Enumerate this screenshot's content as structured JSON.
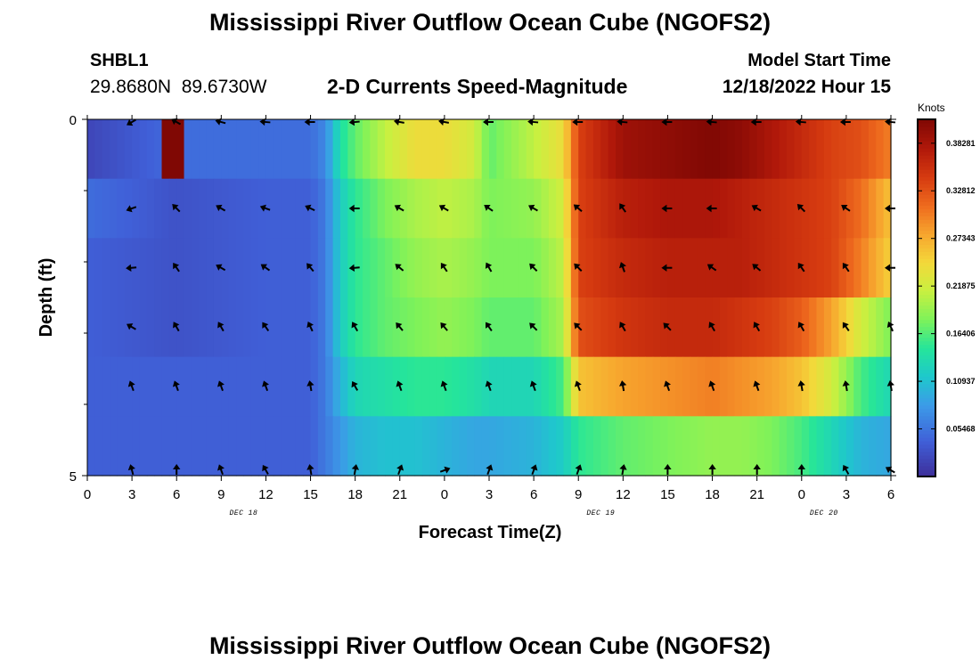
{
  "header": {
    "title": "Mississippi River Outflow Ocean Cube (NGOFS2)",
    "station_id": "SHBL1",
    "station_coords": "29.8680N  89.6730W",
    "plot_subtitle": "2-D Currents Speed-Magnitude",
    "model_start_label": "Model Start Time",
    "model_start_value": "12/18/2022 Hour 15"
  },
  "footer": {
    "next_title": "Mississippi River Outflow Ocean Cube (NGOFS2)"
  },
  "chart_data": {
    "type": "heatmap",
    "title": "2-D Currents Speed-Magnitude",
    "xlabel": "Forecast Time(Z)",
    "ylabel": "Depth (ft)",
    "colorbar_label": "Knots",
    "colorbar_ticks": [
      "0.05468",
      "0.10937",
      "0.16406",
      "0.21875",
      "0.27343",
      "0.32812",
      "0.38281"
    ],
    "colorbar_range": [
      0.0,
      0.4102
    ],
    "x_tick_labels": [
      "0",
      "3",
      "6",
      "9",
      "12",
      "15",
      "18",
      "21",
      "0",
      "3",
      "6",
      "9",
      "12",
      "15",
      "18",
      "21",
      "0",
      "3",
      "6"
    ],
    "x_range_hours": [
      0,
      54
    ],
    "date_labels": [
      {
        "label": "DEC 18",
        "hour": 10.5
      },
      {
        "label": "DEC 19",
        "hour": 34.5
      },
      {
        "label": "DEC 20",
        "hour": 49.5
      }
    ],
    "y_tick_labels": [
      "0",
      "5"
    ],
    "y_range_ft": [
      0,
      5
    ],
    "depth_layers_ft": [
      0.25,
      1.0,
      2.0,
      3.0,
      4.0,
      4.75
    ],
    "speed_keypoints": {
      "hours": [
        0,
        6,
        12,
        15,
        16,
        17,
        18,
        20,
        22,
        24,
        26,
        27,
        30,
        32,
        33,
        36,
        39,
        42,
        44,
        46,
        48,
        50,
        52,
        54
      ],
      "layers": [
        [
          0.02,
          0.05,
          0.05,
          0.05,
          0.07,
          0.14,
          0.17,
          0.21,
          0.24,
          0.24,
          0.22,
          0.17,
          0.21,
          0.24,
          0.34,
          0.39,
          0.4,
          0.41,
          0.4,
          0.38,
          0.36,
          0.34,
          0.33,
          0.3
        ],
        [
          0.05,
          0.03,
          0.04,
          0.04,
          0.06,
          0.12,
          0.15,
          0.18,
          0.2,
          0.21,
          0.2,
          0.18,
          0.19,
          0.22,
          0.34,
          0.37,
          0.38,
          0.38,
          0.37,
          0.36,
          0.35,
          0.34,
          0.31,
          0.26
        ],
        [
          0.04,
          0.03,
          0.04,
          0.04,
          0.06,
          0.12,
          0.15,
          0.17,
          0.19,
          0.2,
          0.19,
          0.18,
          0.18,
          0.21,
          0.34,
          0.36,
          0.37,
          0.37,
          0.37,
          0.36,
          0.35,
          0.34,
          0.3,
          0.25
        ],
        [
          0.04,
          0.03,
          0.04,
          0.04,
          0.06,
          0.12,
          0.15,
          0.17,
          0.18,
          0.19,
          0.18,
          0.17,
          0.17,
          0.2,
          0.33,
          0.35,
          0.36,
          0.36,
          0.35,
          0.34,
          0.32,
          0.28,
          0.22,
          0.18
        ],
        [
          0.04,
          0.04,
          0.04,
          0.04,
          0.06,
          0.1,
          0.13,
          0.14,
          0.15,
          0.15,
          0.14,
          0.13,
          0.13,
          0.16,
          0.26,
          0.28,
          0.29,
          0.3,
          0.29,
          0.28,
          0.26,
          0.22,
          0.16,
          0.13
        ],
        [
          0.04,
          0.04,
          0.04,
          0.04,
          0.06,
          0.08,
          0.1,
          0.11,
          0.11,
          0.1,
          0.09,
          0.09,
          0.1,
          0.12,
          0.15,
          0.17,
          0.18,
          0.19,
          0.19,
          0.18,
          0.16,
          0.13,
          0.1,
          0.09
        ]
      ],
      "hotspot": {
        "hour_from": 5,
        "hour_to": 6.5,
        "layer": 0,
        "value": 0.41
      }
    },
    "arrow_hours": [
      3,
      6,
      9,
      12,
      15,
      18,
      21,
      24,
      27,
      30,
      33,
      36,
      39,
      42,
      45,
      48,
      51,
      54
    ],
    "arrow_directions_deg": [
      [
        210,
        150,
        165,
        175,
        180,
        185,
        170,
        170,
        180,
        175,
        180,
        175,
        180,
        175,
        180,
        175,
        180,
        175
      ],
      [
        200,
        135,
        150,
        160,
        155,
        180,
        150,
        150,
        145,
        150,
        140,
        125,
        180,
        180,
        150,
        135,
        145,
        180
      ],
      [
        185,
        125,
        150,
        145,
        130,
        185,
        140,
        125,
        120,
        135,
        135,
        110,
        180,
        145,
        140,
        125,
        125,
        180
      ],
      [
        150,
        120,
        120,
        125,
        115,
        120,
        130,
        130,
        125,
        135,
        135,
        120,
        135,
        120,
        120,
        120,
        125,
        115
      ],
      [
        110,
        110,
        110,
        110,
        100,
        120,
        110,
        110,
        110,
        110,
        110,
        100,
        110,
        110,
        110,
        100,
        100,
        100
      ],
      [
        105,
        90,
        110,
        120,
        100,
        80,
        70,
        20,
        70,
        70,
        70,
        80,
        90,
        90,
        90,
        90,
        120,
        150
      ]
    ]
  }
}
